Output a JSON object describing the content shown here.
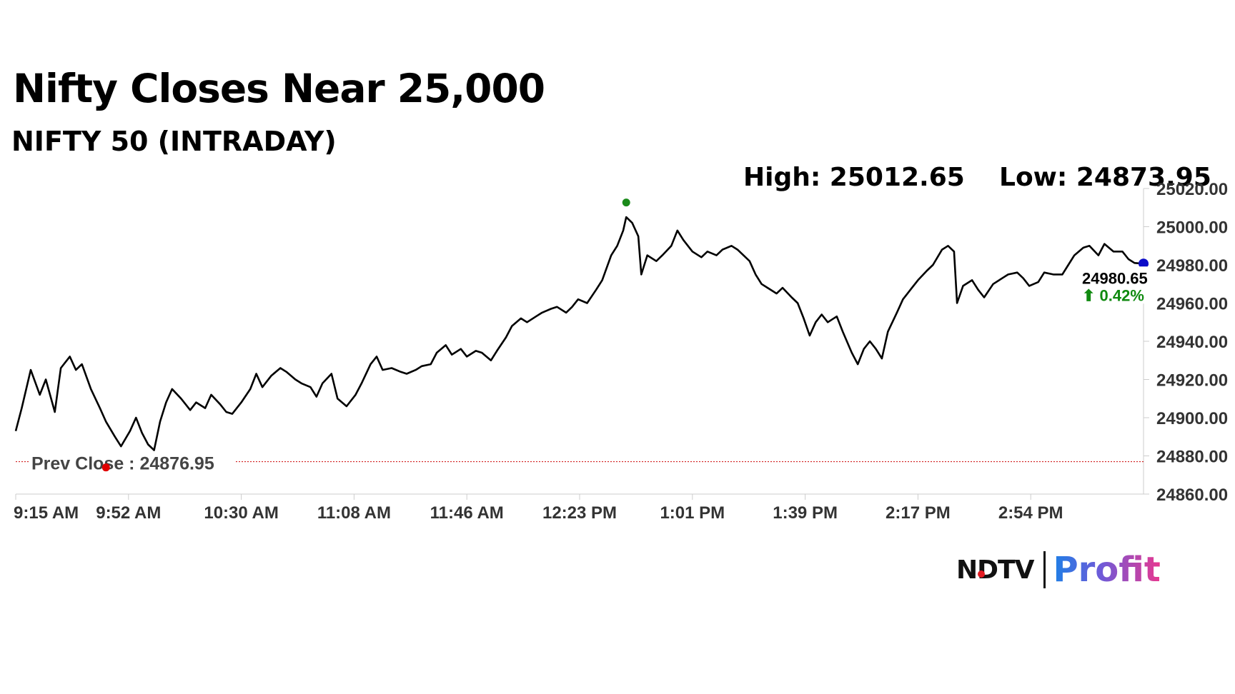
{
  "header": {
    "title": "Nifty Closes Near 25,000",
    "subtitle": "NIFTY 50 (INTRADAY)",
    "high_text": "High: 25012.65",
    "low_text": "Low: 24873.95"
  },
  "brand": {
    "ndtv": "NDTV",
    "profit": "Profit"
  },
  "colors": {
    "line": "#000000",
    "prev_close": "#cc0000",
    "high_marker": "#1a8a1a",
    "low_marker": "#e00000",
    "last_marker": "#0b0bc8",
    "change_positive": "#108a10",
    "axis_text": "#333333"
  },
  "chart_data": {
    "type": "line",
    "title": "NIFTY 50 (INTRADAY)",
    "xlabel": "",
    "ylabel": "",
    "ylim": [
      24860,
      25020
    ],
    "y_ticks": [
      "24860.00",
      "24880.00",
      "24900.00",
      "24920.00",
      "24940.00",
      "24960.00",
      "24980.00",
      "25000.00",
      "25020.00"
    ],
    "x_ticks": [
      "9:15 AM",
      "9:52 AM",
      "10:30 AM",
      "11:08 AM",
      "11:46 AM",
      "12:23 PM",
      "1:01 PM",
      "1:39 PM",
      "2:17 PM",
      "2:54 PM"
    ],
    "time_range_minutes": [
      0,
      375
    ],
    "grid": false,
    "high": 25012.65,
    "low": 24873.95,
    "prev_close": 24876.95,
    "prev_close_label": "Prev Close : 24876.95",
    "last_value": 24980.65,
    "last_value_label": "24980.65",
    "change_label": "⬆ 0.42%",
    "high_marker_minute": 203,
    "low_marker_minute": 30,
    "series": [
      {
        "values": [
          [
            0,
            24893
          ],
          [
            2,
            24905
          ],
          [
            5,
            24925
          ],
          [
            8,
            24912
          ],
          [
            10,
            24920
          ],
          [
            13,
            24903
          ],
          [
            15,
            24926
          ],
          [
            18,
            24932
          ],
          [
            20,
            24925
          ],
          [
            22,
            24928
          ],
          [
            25,
            24915
          ],
          [
            28,
            24905
          ],
          [
            30,
            24898
          ],
          [
            33,
            24890
          ],
          [
            35,
            24885
          ],
          [
            38,
            24893
          ],
          [
            40,
            24900
          ],
          [
            42,
            24892
          ],
          [
            44,
            24886
          ],
          [
            46,
            24883
          ],
          [
            48,
            24898
          ],
          [
            50,
            24908
          ],
          [
            52,
            24915
          ],
          [
            55,
            24910
          ],
          [
            58,
            24904
          ],
          [
            60,
            24908
          ],
          [
            63,
            24905
          ],
          [
            65,
            24912
          ],
          [
            68,
            24907
          ],
          [
            70,
            24903
          ],
          [
            72,
            24902
          ],
          [
            75,
            24908
          ],
          [
            78,
            24915
          ],
          [
            80,
            24923
          ],
          [
            82,
            24916
          ],
          [
            85,
            24922
          ],
          [
            88,
            24926
          ],
          [
            90,
            24924
          ],
          [
            93,
            24920
          ],
          [
            95,
            24918
          ],
          [
            98,
            24916
          ],
          [
            100,
            24911
          ],
          [
            102,
            24918
          ],
          [
            105,
            24923
          ],
          [
            107,
            24910
          ],
          [
            110,
            24906
          ],
          [
            113,
            24912
          ],
          [
            115,
            24918
          ],
          [
            118,
            24928
          ],
          [
            120,
            24932
          ],
          [
            122,
            24925
          ],
          [
            125,
            24926
          ],
          [
            128,
            24924
          ],
          [
            130,
            24923
          ],
          [
            133,
            24925
          ],
          [
            135,
            24927
          ],
          [
            138,
            24928
          ],
          [
            140,
            24934
          ],
          [
            143,
            24938
          ],
          [
            145,
            24933
          ],
          [
            148,
            24936
          ],
          [
            150,
            24932
          ],
          [
            153,
            24935
          ],
          [
            155,
            24934
          ],
          [
            158,
            24930
          ],
          [
            160,
            24935
          ],
          [
            163,
            24942
          ],
          [
            165,
            24948
          ],
          [
            168,
            24952
          ],
          [
            170,
            24950
          ],
          [
            173,
            24953
          ],
          [
            175,
            24955
          ],
          [
            178,
            24957
          ],
          [
            180,
            24958
          ],
          [
            183,
            24955
          ],
          [
            185,
            24958
          ],
          [
            187,
            24962
          ],
          [
            190,
            24960
          ],
          [
            193,
            24967
          ],
          [
            195,
            24972
          ],
          [
            198,
            24985
          ],
          [
            200,
            24990
          ],
          [
            202,
            24998
          ],
          [
            203,
            25005
          ],
          [
            205,
            25002
          ],
          [
            207,
            24995
          ],
          [
            208,
            24975
          ],
          [
            210,
            24985
          ],
          [
            213,
            24982
          ],
          [
            215,
            24985
          ],
          [
            218,
            24990
          ],
          [
            220,
            24998
          ],
          [
            222,
            24993
          ],
          [
            225,
            24987
          ],
          [
            228,
            24984
          ],
          [
            230,
            24987
          ],
          [
            233,
            24985
          ],
          [
            235,
            24988
          ],
          [
            238,
            24990
          ],
          [
            240,
            24988
          ],
          [
            242,
            24985
          ],
          [
            244,
            24982
          ],
          [
            246,
            24975
          ],
          [
            248,
            24970
          ],
          [
            250,
            24968
          ],
          [
            253,
            24965
          ],
          [
            255,
            24968
          ],
          [
            258,
            24963
          ],
          [
            260,
            24960
          ],
          [
            262,
            24952
          ],
          [
            264,
            24943
          ],
          [
            266,
            24950
          ],
          [
            268,
            24954
          ],
          [
            270,
            24950
          ],
          [
            273,
            24953
          ],
          [
            275,
            24945
          ],
          [
            278,
            24934
          ],
          [
            280,
            24928
          ],
          [
            282,
            24936
          ],
          [
            284,
            24940
          ],
          [
            286,
            24936
          ],
          [
            288,
            24931
          ],
          [
            290,
            24945
          ],
          [
            293,
            24955
          ],
          [
            295,
            24962
          ],
          [
            298,
            24968
          ],
          [
            300,
            24972
          ],
          [
            303,
            24977
          ],
          [
            305,
            24980
          ],
          [
            308,
            24988
          ],
          [
            310,
            24990
          ],
          [
            312,
            24987
          ],
          [
            313,
            24960
          ],
          [
            315,
            24969
          ],
          [
            318,
            24972
          ],
          [
            320,
            24967
          ],
          [
            322,
            24963
          ],
          [
            325,
            24970
          ],
          [
            328,
            24973
          ],
          [
            330,
            24975
          ],
          [
            333,
            24976
          ],
          [
            335,
            24973
          ],
          [
            337,
            24969
          ],
          [
            340,
            24971
          ],
          [
            342,
            24976
          ],
          [
            345,
            24975
          ],
          [
            348,
            24975
          ],
          [
            350,
            24980
          ],
          [
            352,
            24985
          ],
          [
            355,
            24989
          ],
          [
            357,
            24990
          ],
          [
            360,
            24985
          ],
          [
            362,
            24991
          ],
          [
            365,
            24987
          ],
          [
            368,
            24987
          ],
          [
            370,
            24983
          ],
          [
            372,
            24981
          ],
          [
            375,
            24980.65
          ]
        ]
      }
    ]
  }
}
